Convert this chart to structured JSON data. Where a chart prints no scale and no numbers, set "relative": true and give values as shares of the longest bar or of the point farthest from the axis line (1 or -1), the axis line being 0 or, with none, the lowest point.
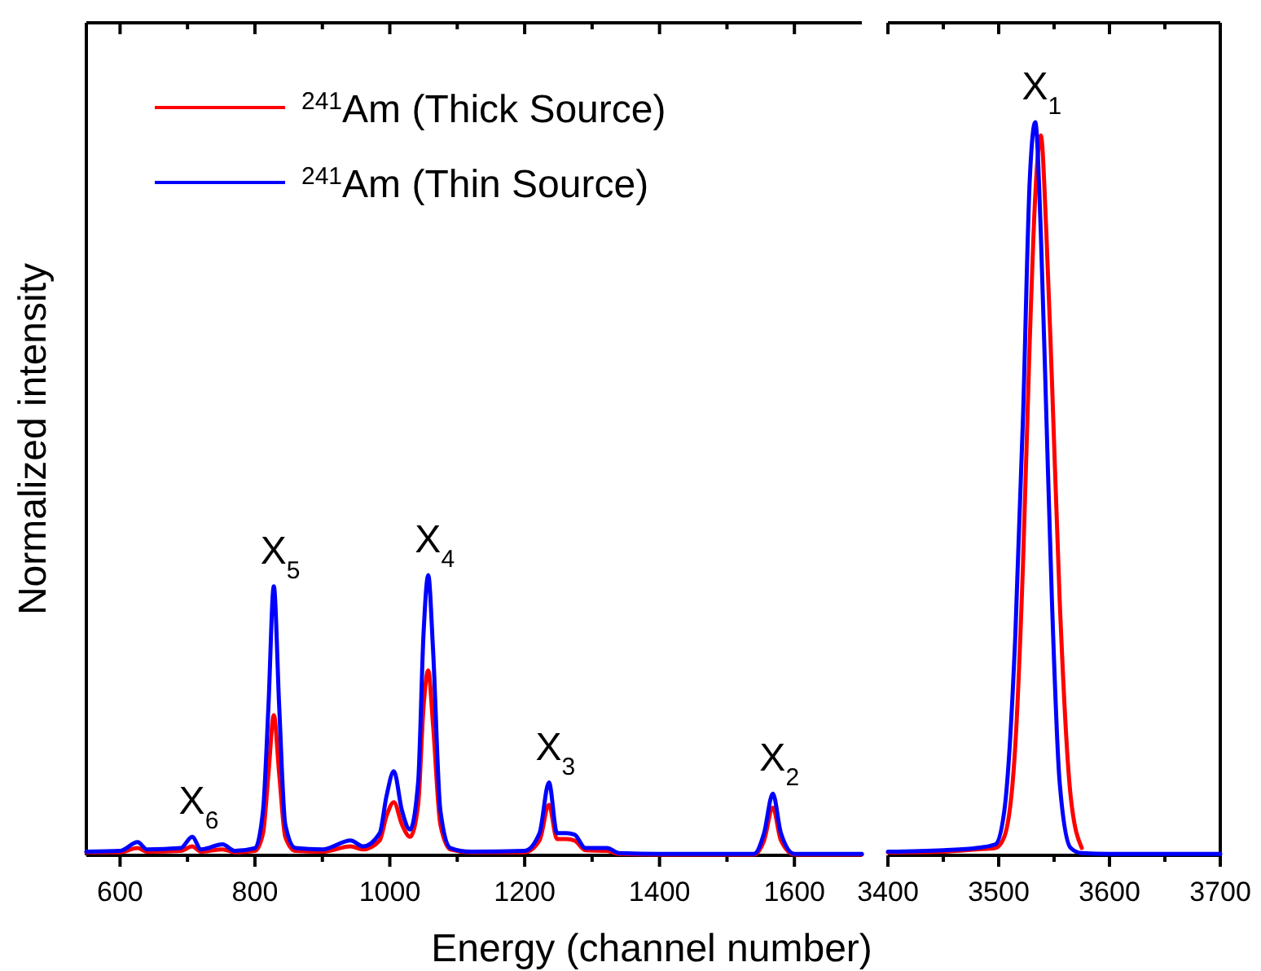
{
  "chart_data": [
    {
      "type": "line",
      "relative": true,
      "ylabel": "Normalized intensity",
      "xlabel": "Energy (channel number)",
      "legend": "top left",
      "xlim": [
        550,
        1700
      ],
      "xticks": [
        600,
        {
          "value": 700,
          "label": null
        },
        800,
        {
          "value": 900,
          "label": null
        },
        1000,
        {
          "value": 1100,
          "label": null
        },
        1200,
        {
          "value": 1300,
          "label": null
        },
        1400,
        {
          "value": 1500,
          "label": null
        },
        1600
      ],
      "x": [
        550,
        600,
        626,
        640,
        690,
        707,
        720,
        752,
        770,
        800,
        812,
        820,
        828,
        836,
        845,
        860,
        900,
        942,
        960,
        985,
        995,
        1006,
        1018,
        1030,
        1042,
        1050,
        1057,
        1064,
        1075,
        1090,
        1120,
        1200,
        1222,
        1236,
        1248,
        1262,
        1274,
        1290,
        1322,
        1340,
        1400,
        1540,
        1555,
        1568,
        1580,
        1600,
        1700
      ],
      "series": [
        {
          "name": "$^{241}$Am (Thick Source)",
          "color": "#ff0000",
          "values": [
            0.011,
            0.011,
            0.026,
            0.013,
            0.016,
            0.032,
            0.013,
            0.021,
            0.011,
            0.016,
            0.079,
            0.29,
            0.5,
            0.29,
            0.066,
            0.016,
            0.013,
            0.032,
            0.021,
            0.053,
            0.14,
            0.19,
            0.11,
            0.066,
            0.18,
            0.53,
            0.66,
            0.47,
            0.11,
            0.021,
            0.011,
            0.011,
            0.053,
            0.18,
            0.058,
            0.058,
            0.053,
            0.018,
            0.016,
            0.005,
            0.003,
            0.003,
            0.053,
            0.17,
            0.053,
            0.003,
            0.003
          ]
        },
        {
          "name": "$^{241}$Am (Thin Source)",
          "color": "#0000ff",
          "values": [
            0.013,
            0.016,
            0.047,
            0.021,
            0.026,
            0.066,
            0.021,
            0.039,
            0.016,
            0.026,
            0.16,
            0.53,
            0.96,
            0.53,
            0.11,
            0.026,
            0.021,
            0.053,
            0.032,
            0.079,
            0.21,
            0.3,
            0.16,
            0.092,
            0.26,
            0.79,
            1,
            0.74,
            0.16,
            0.026,
            0.013,
            0.016,
            0.079,
            0.26,
            0.079,
            0.079,
            0.074,
            0.026,
            0.026,
            0.008,
            0.005,
            0.005,
            0.079,
            0.22,
            0.079,
            0.005,
            0.005
          ]
        }
      ],
      "annotations": [
        {
          "text": "X$_{6}$",
          "x": 707,
          "y": 0.066
        },
        {
          "text": "X$_{5}$",
          "x": 828,
          "y": 0.96
        },
        {
          "text": "X$_{4}$",
          "x": 1057,
          "y": 1
        },
        {
          "text": "X$_{3}$",
          "x": 1236,
          "y": 0.26
        },
        {
          "text": "X$_{2}$",
          "x": 1568,
          "y": 0.22
        }
      ]
    },
    {
      "type": "line",
      "relative": true,
      "tick_labels": "x",
      "xlim": [
        3400,
        3700
      ],
      "xticks": [
        3400,
        {
          "value": 3450,
          "label": null
        },
        3500,
        {
          "value": 3550,
          "label": null
        },
        3600,
        {
          "value": 3650,
          "label": null
        },
        3700
      ],
      "x": [
        3400,
        3450,
        3480,
        3497,
        3505,
        3515,
        3522,
        3528,
        3533,
        3538,
        3543,
        3548,
        3555,
        3565,
        3575,
        3600,
        3700
      ],
      "series": [
        {
          "color": "#ff0000",
          "values": [
            0.004,
            0.005,
            0.008,
            0.01,
            0.025,
            0.15,
            0.4,
            0.7,
            0.9,
            0.982,
            0.85,
            0.65,
            0.35,
            0.08,
            0.01,
            null,
            null
          ]
        },
        {
          "color": "#0000ff",
          "values": [
            0.005,
            0.007,
            0.01,
            0.015,
            0.06,
            0.3,
            0.6,
            0.92,
            1,
            0.85,
            0.6,
            0.35,
            0.1,
            0.01,
            0.003,
            0.002,
            0.002
          ]
        }
      ],
      "annotations": [
        {
          "text": "X$_{1}$",
          "x": 3533,
          "y": 1
        }
      ]
    }
  ]
}
